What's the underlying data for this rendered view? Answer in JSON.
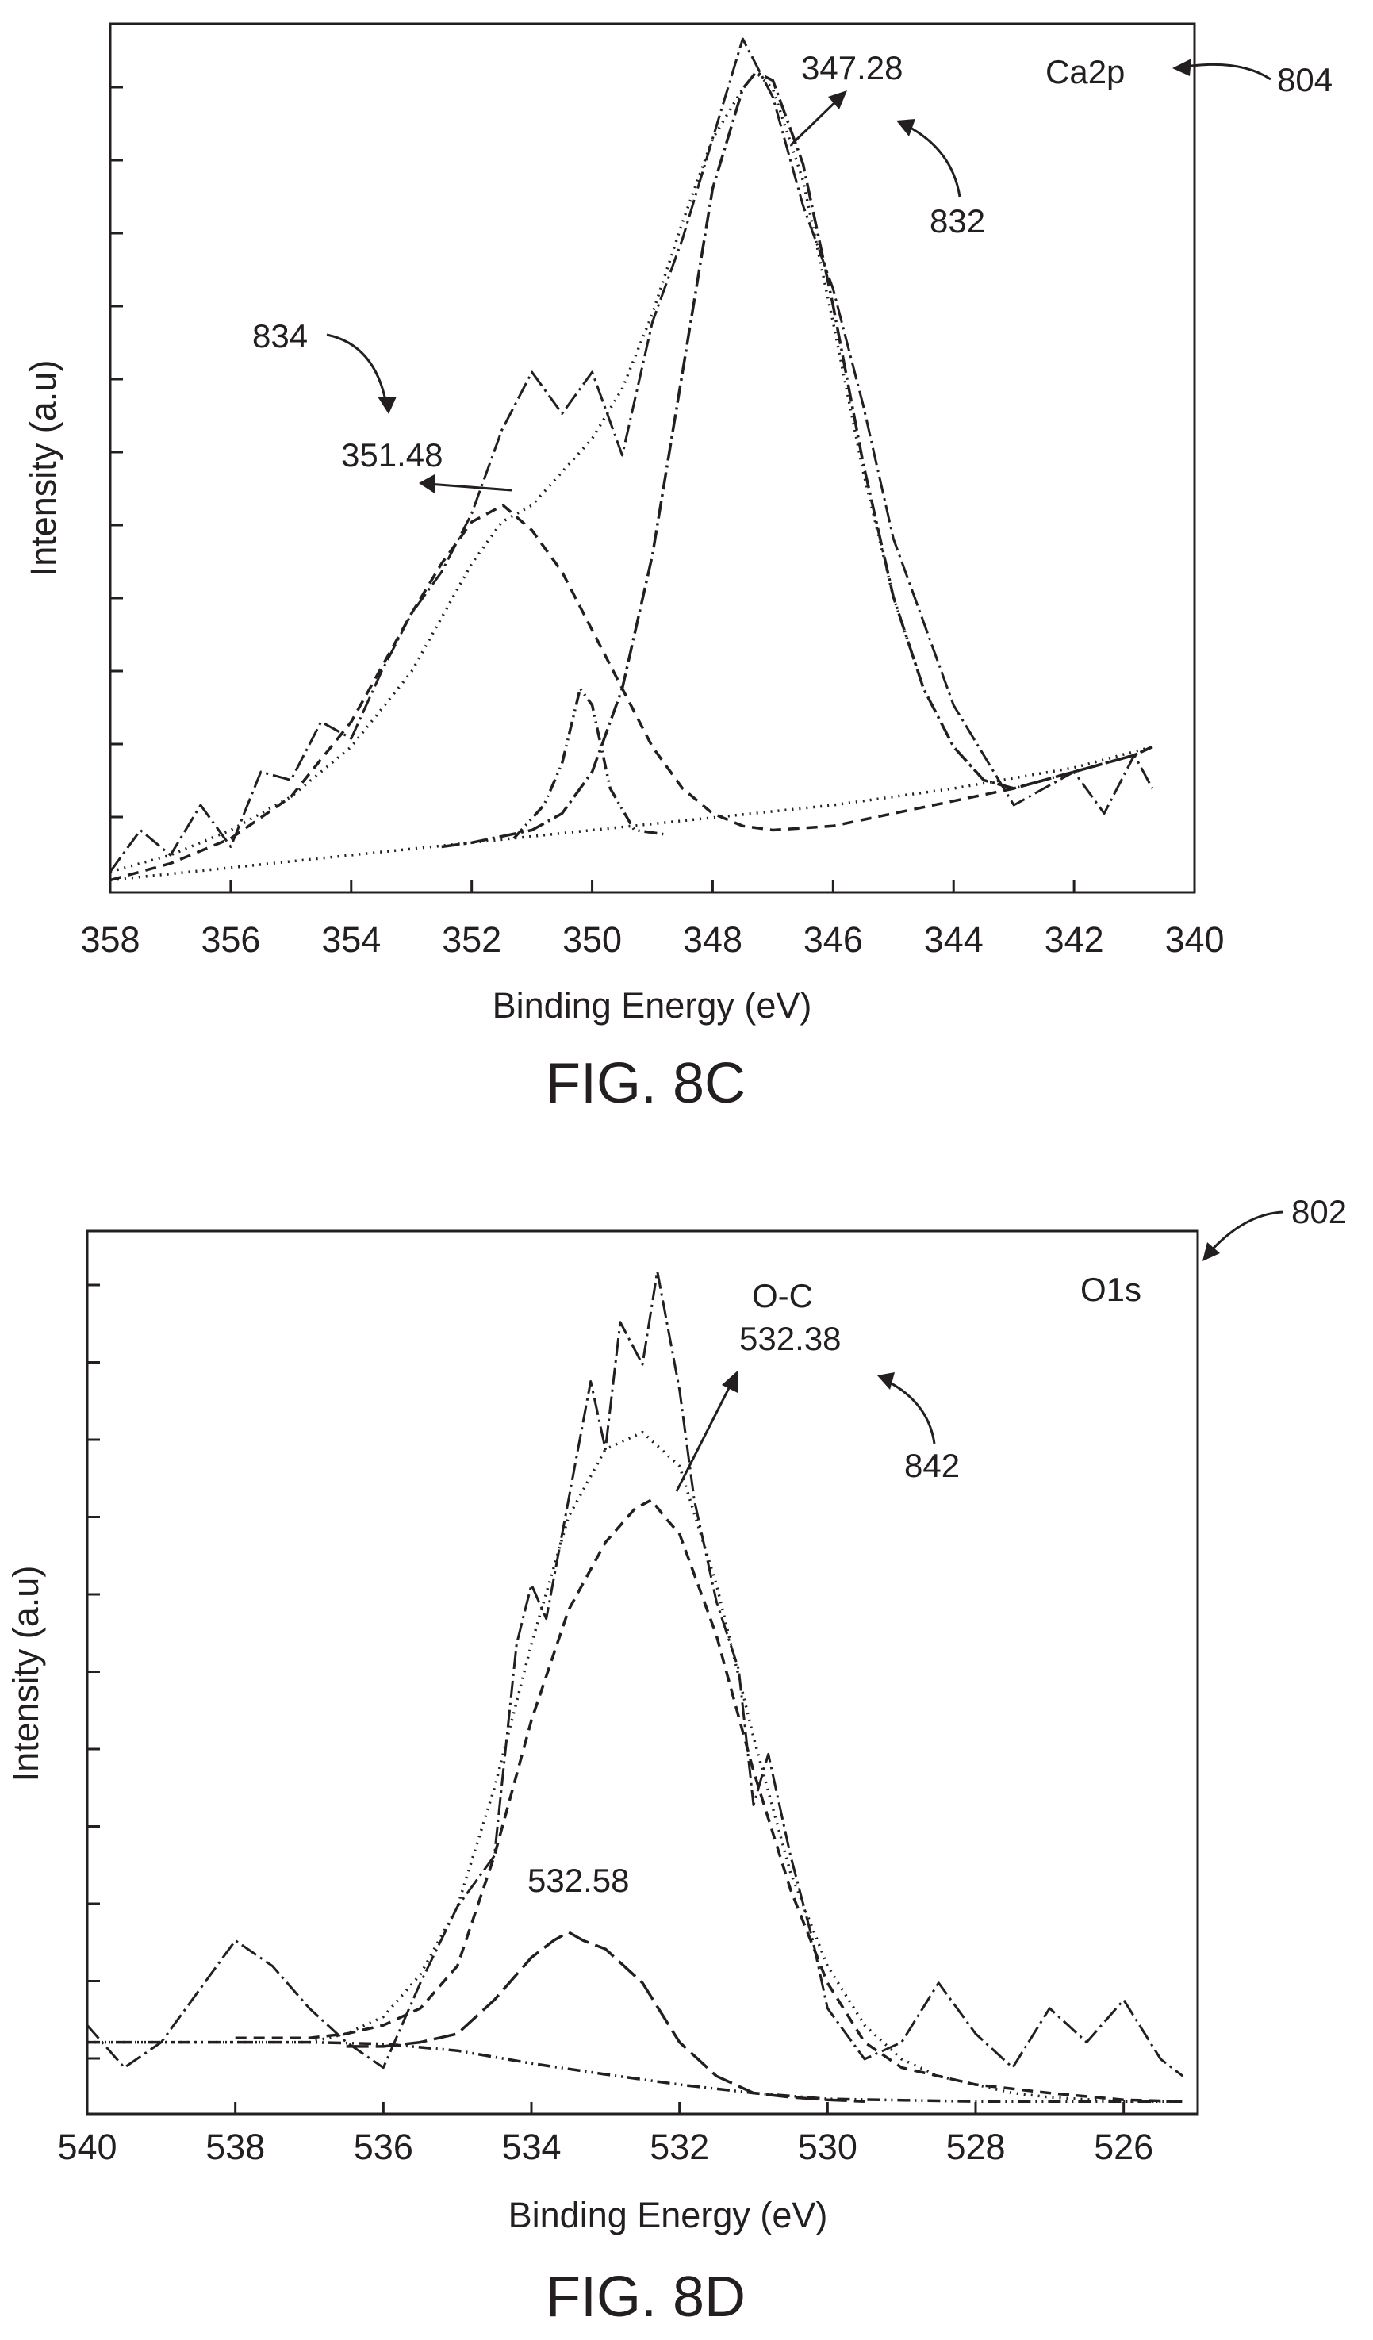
{
  "chart_data": [
    {
      "type": "line",
      "figure_label": "FIG. 8C",
      "xlabel": "Binding Energy (eV)",
      "ylabel": "Intensity (a.u)",
      "xlim": [
        358,
        340
      ],
      "x_ticks": [
        "358",
        "356",
        "354",
        "352",
        "350",
        "348",
        "346",
        "344",
        "342",
        "340"
      ],
      "ylim": [
        0,
        1
      ],
      "y_tick_count": 11,
      "grid": false,
      "legend": "none",
      "annotations": [
        {
          "text": "Ca2p",
          "ref": "804"
        },
        {
          "text": "347.28",
          "ref": "832",
          "peak_x": 347.28
        },
        {
          "text": "351.48",
          "ref": "834",
          "peak_x": 351.48
        }
      ],
      "series": [
        {
          "style": "dash-dot",
          "role": "raw",
          "x": [
            358,
            357.5,
            357,
            356.5,
            356,
            355.5,
            355,
            354.5,
            354,
            353.5,
            353,
            352.5,
            352,
            351.5,
            351,
            350.5,
            350,
            349.5,
            349,
            348.5,
            348,
            347.5,
            347,
            346.5,
            346,
            345.5,
            345,
            344.5,
            344,
            343.5,
            343,
            342.5,
            342,
            341.5,
            341,
            340.7
          ],
          "values": [
            0.02,
            0.07,
            0.04,
            0.1,
            0.05,
            0.14,
            0.13,
            0.2,
            0.18,
            0.26,
            0.33,
            0.38,
            0.45,
            0.55,
            0.62,
            0.57,
            0.62,
            0.52,
            0.68,
            0.78,
            0.9,
            1.02,
            0.95,
            0.82,
            0.72,
            0.58,
            0.42,
            0.32,
            0.22,
            0.16,
            0.1,
            0.12,
            0.14,
            0.09,
            0.16,
            0.12
          ]
        },
        {
          "style": "dotted",
          "role": "envelope",
          "x": [
            358,
            357,
            356,
            355,
            354,
            353,
            352,
            351.5,
            351,
            350.5,
            350,
            349.5,
            349,
            348.5,
            348,
            347.5,
            347.28,
            347,
            346.5,
            346,
            345.5,
            345,
            344.5,
            344,
            343.5,
            343,
            342,
            341,
            340.7
          ],
          "values": [
            0.02,
            0.04,
            0.07,
            0.11,
            0.17,
            0.26,
            0.39,
            0.44,
            0.46,
            0.5,
            0.54,
            0.6,
            0.69,
            0.8,
            0.9,
            0.96,
            0.98,
            0.96,
            0.85,
            0.68,
            0.5,
            0.35,
            0.24,
            0.17,
            0.13,
            0.12,
            0.14,
            0.16,
            0.17
          ]
        },
        {
          "style": "dashed",
          "role": "fit-351.48",
          "x": [
            358,
            357,
            356,
            355,
            354,
            353,
            352.5,
            352,
            351.48,
            351,
            350.5,
            350,
            349.5,
            349,
            348.5,
            348,
            347.5,
            347,
            346,
            345,
            344,
            343,
            342,
            341,
            340.7
          ],
          "values": [
            0.01,
            0.03,
            0.06,
            0.11,
            0.2,
            0.33,
            0.39,
            0.44,
            0.46,
            0.43,
            0.38,
            0.31,
            0.24,
            0.17,
            0.12,
            0.09,
            0.075,
            0.07,
            0.075,
            0.09,
            0.105,
            0.12,
            0.14,
            0.16,
            0.17
          ]
        },
        {
          "style": "dash-dot",
          "role": "fit-347.28",
          "x": [
            352.5,
            352,
            351,
            350.5,
            350,
            349.5,
            349,
            348.5,
            348,
            347.5,
            347.28,
            347,
            346.5,
            346,
            345.5,
            345,
            344.5,
            344,
            343.5,
            343,
            342,
            341,
            340.7
          ],
          "values": [
            0.05,
            0.055,
            0.07,
            0.09,
            0.14,
            0.24,
            0.4,
            0.62,
            0.84,
            0.96,
            0.98,
            0.97,
            0.87,
            0.7,
            0.51,
            0.35,
            0.24,
            0.17,
            0.13,
            0.12,
            0.14,
            0.16,
            0.17
          ]
        },
        {
          "style": "dash-dot-dot",
          "role": "minor",
          "x": [
            351.3,
            350.8,
            350.5,
            350.2,
            350.0,
            349.7,
            349.3,
            348.8
          ],
          "values": [
            0.06,
            0.1,
            0.15,
            0.24,
            0.22,
            0.12,
            0.07,
            0.065
          ]
        },
        {
          "style": "dotted",
          "role": "background",
          "x": [
            358,
            356,
            354,
            352,
            350,
            348,
            346,
            344,
            342,
            340.7
          ],
          "values": [
            0.01,
            0.025,
            0.04,
            0.055,
            0.07,
            0.085,
            0.1,
            0.12,
            0.145,
            0.17
          ]
        }
      ]
    },
    {
      "type": "line",
      "figure_label": "FIG. 8D",
      "xlabel": "Binding Energy (eV)",
      "ylabel": "Intensity (a.u)",
      "xlim": [
        540,
        525
      ],
      "x_ticks": [
        "540",
        "538",
        "536",
        "534",
        "532",
        "530",
        "528",
        "526"
      ],
      "ylim": [
        0,
        1
      ],
      "y_tick_count": 11,
      "grid": false,
      "legend": "none",
      "annotations": [
        {
          "text": "O1s",
          "ref": "802"
        },
        {
          "text": "O-C",
          "ref": ""
        },
        {
          "text": "532.38",
          "ref": "842",
          "peak_x": 532.38
        },
        {
          "text": "532.58",
          "ref": "",
          "peak_x": 533.5
        }
      ],
      "series": [
        {
          "style": "dash-dot",
          "role": "raw",
          "x": [
            540,
            539.5,
            539,
            538.5,
            538,
            537.5,
            537,
            536.5,
            536,
            535.5,
            535,
            534.5,
            534.2,
            534,
            533.8,
            533.5,
            533.2,
            533,
            532.8,
            532.5,
            532.3,
            532,
            531.8,
            531.5,
            531.2,
            531,
            530.8,
            530.5,
            530.2,
            530,
            529.5,
            529,
            528.5,
            528,
            527.5,
            527,
            526.5,
            526,
            525.5,
            525.2
          ],
          "values": [
            0.1,
            0.05,
            0.08,
            0.14,
            0.2,
            0.17,
            0.12,
            0.08,
            0.05,
            0.15,
            0.24,
            0.3,
            0.55,
            0.62,
            0.58,
            0.72,
            0.86,
            0.78,
            0.93,
            0.88,
            0.99,
            0.85,
            0.72,
            0.6,
            0.52,
            0.36,
            0.42,
            0.3,
            0.2,
            0.12,
            0.06,
            0.08,
            0.15,
            0.09,
            0.05,
            0.12,
            0.08,
            0.13,
            0.06,
            0.04
          ]
        },
        {
          "style": "dotted",
          "role": "envelope",
          "x": [
            540,
            539,
            538,
            537,
            536.5,
            536,
            535.5,
            535,
            534.5,
            534,
            533.5,
            533,
            532.5,
            532,
            531.5,
            531,
            530.5,
            530,
            529.5,
            529,
            528.5,
            528,
            527.5,
            527,
            526,
            525.2
          ],
          "values": [
            0.08,
            0.08,
            0.08,
            0.08,
            0.09,
            0.11,
            0.16,
            0.24,
            0.38,
            0.55,
            0.7,
            0.78,
            0.8,
            0.76,
            0.62,
            0.44,
            0.28,
            0.17,
            0.1,
            0.06,
            0.04,
            0.03,
            0.02,
            0.015,
            0.01,
            0.01
          ]
        },
        {
          "style": "dashed",
          "role": "fit-532.38",
          "x": [
            538,
            537,
            536.5,
            536,
            535.5,
            535,
            534.5,
            534,
            533.5,
            533,
            532.6,
            532.38,
            532.2,
            532,
            531.5,
            531,
            530.5,
            530,
            529.5,
            529,
            528,
            527,
            526,
            525.2
          ],
          "values": [
            0.085,
            0.085,
            0.09,
            0.1,
            0.12,
            0.17,
            0.3,
            0.46,
            0.59,
            0.67,
            0.71,
            0.72,
            0.7,
            0.68,
            0.56,
            0.4,
            0.26,
            0.15,
            0.08,
            0.05,
            0.03,
            0.02,
            0.012,
            0.01
          ]
        },
        {
          "style": "long-dash",
          "role": "fit-532.58",
          "x": [
            536.5,
            536,
            535.5,
            535,
            534.5,
            534,
            533.7,
            533.5,
            533.3,
            533,
            532.5,
            532,
            531.5,
            531,
            530.5,
            530,
            529.5
          ],
          "values": [
            0.075,
            0.075,
            0.08,
            0.09,
            0.13,
            0.18,
            0.2,
            0.21,
            0.2,
            0.19,
            0.15,
            0.08,
            0.04,
            0.02,
            0.015,
            0.012,
            0.01
          ]
        },
        {
          "style": "dash-dot-dot",
          "role": "background",
          "x": [
            540,
            537,
            536,
            535,
            534,
            533,
            532,
            531,
            530,
            528,
            526,
            525.2
          ],
          "values": [
            0.08,
            0.08,
            0.078,
            0.07,
            0.055,
            0.042,
            0.03,
            0.02,
            0.013,
            0.01,
            0.01,
            0.01
          ]
        }
      ]
    }
  ]
}
